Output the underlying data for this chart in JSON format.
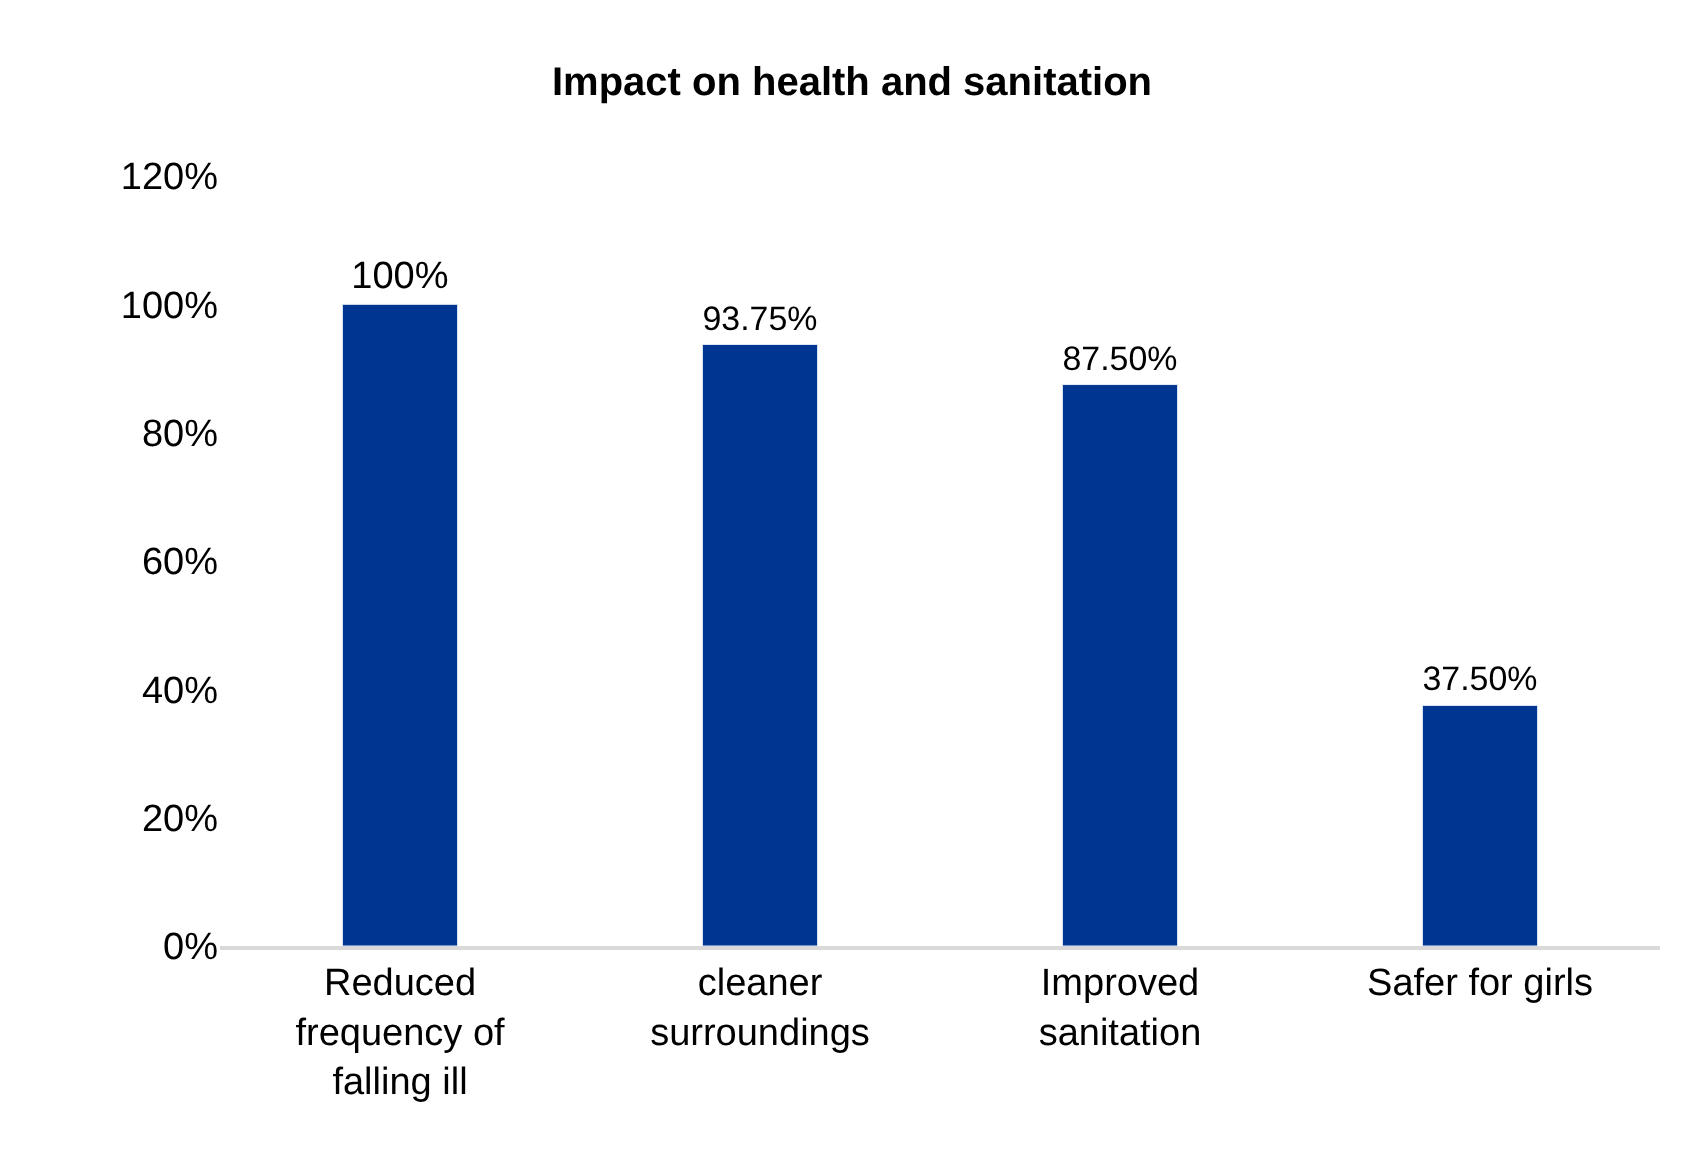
{
  "chart_data": {
    "type": "bar",
    "title": "Impact on health and sanitation",
    "categories": [
      "Reduced frequency of falling ill",
      "cleaner surroundings",
      "Improved sanitation",
      "Safer for girls"
    ],
    "values": [
      100,
      93.75,
      87.5,
      37.5
    ],
    "value_labels": [
      "100%",
      "93.75%",
      "87.50%",
      "37.50%"
    ],
    "color": "#003591",
    "ylim": [
      0,
      120
    ],
    "yticks": [
      {
        "value": 0,
        "label": "0%"
      },
      {
        "value": 20,
        "label": "20%"
      },
      {
        "value": 40,
        "label": "40%"
      },
      {
        "value": 60,
        "label": "60%"
      },
      {
        "value": 80,
        "label": "80%"
      },
      {
        "value": 100,
        "label": "100%"
      },
      {
        "value": 120,
        "label": "120%"
      }
    ],
    "grid": false
  }
}
